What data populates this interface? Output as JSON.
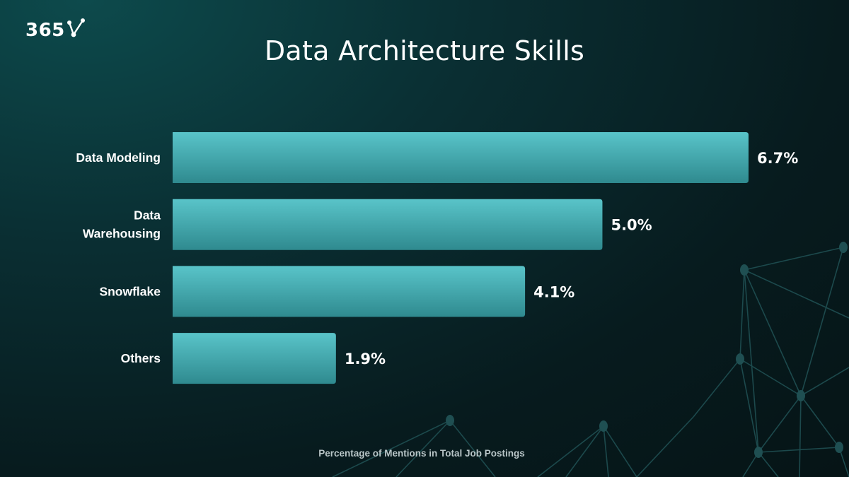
{
  "logo": {
    "text": "365"
  },
  "colors": {
    "bar_top": "#59c4c9",
    "bar_bottom": "#2f8a8f",
    "label": "#ffffff",
    "background": "#071b1e"
  },
  "chart_data": {
    "type": "bar",
    "orientation": "horizontal",
    "title": "Data Architecture Skills",
    "categories": [
      [
        "Data Modeling"
      ],
      [
        "Data",
        "Warehousing"
      ],
      [
        "Snowflake"
      ],
      [
        "Others"
      ]
    ],
    "values": [
      6.7,
      5.0,
      4.1,
      1.9
    ],
    "data_labels": [
      "6.7%",
      "5.0%",
      "4.1%",
      "1.9%"
    ],
    "xlabel": "Percentage of Mentions in Total Job Postings",
    "xlim": [
      0,
      6.7
    ],
    "grid": false,
    "legend": "none"
  }
}
